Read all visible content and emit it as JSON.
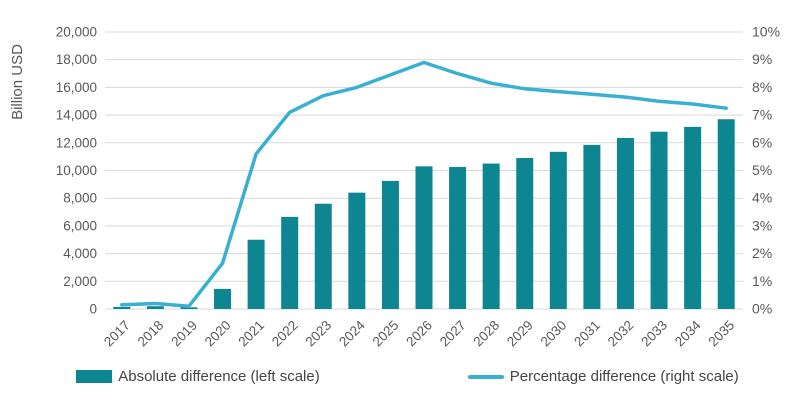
{
  "chart_data": {
    "type": "bar+line",
    "categories": [
      "2017",
      "2018",
      "2019",
      "2020",
      "2021",
      "2022",
      "2023",
      "2024",
      "2025",
      "2026",
      "2027",
      "2028",
      "2029",
      "2030",
      "2031",
      "2032",
      "2033",
      "2034",
      "2035"
    ],
    "series": [
      {
        "name": "Absolute difference (left scale)",
        "type": "bar",
        "axis": "left",
        "values": [
          150,
          200,
          120,
          1450,
          5000,
          6650,
          7600,
          8400,
          9250,
          10300,
          10250,
          10500,
          10900,
          11350,
          11850,
          12350,
          12800,
          13150,
          13700
        ]
      },
      {
        "name": "Percentage difference (right scale)",
        "type": "line",
        "axis": "right",
        "values": [
          0.15,
          0.2,
          0.1,
          1.65,
          5.6,
          7.1,
          7.7,
          8.0,
          8.45,
          8.9,
          8.5,
          8.15,
          7.95,
          7.85,
          7.75,
          7.65,
          7.5,
          7.4,
          7.25
        ]
      }
    ],
    "left_axis": {
      "title": "Billion USD",
      "min": 0,
      "max": 20000,
      "step": 2000,
      "tick_labels": [
        "0",
        "2,000",
        "4,000",
        "6,000",
        "8,000",
        "10,000",
        "12,000",
        "14,000",
        "16,000",
        "18,000",
        "20,000"
      ]
    },
    "right_axis": {
      "min": 0,
      "max": 10,
      "step": 1,
      "tick_labels": [
        "0%",
        "1%",
        "2%",
        "3%",
        "4%",
        "5%",
        "6%",
        "7%",
        "8%",
        "9%",
        "10%"
      ]
    },
    "grid": true,
    "legend_position": "bottom",
    "colors": {
      "bar": "#0e8691",
      "line": "#39b0d2",
      "grid": "#d9d9d9",
      "tick_text": "#595959",
      "axis_title_text": "#595959",
      "legend_text": "#444444"
    },
    "legend": [
      {
        "label": "Absolute difference (left scale)"
      },
      {
        "label": "Percentage difference (right scale)"
      }
    ]
  }
}
